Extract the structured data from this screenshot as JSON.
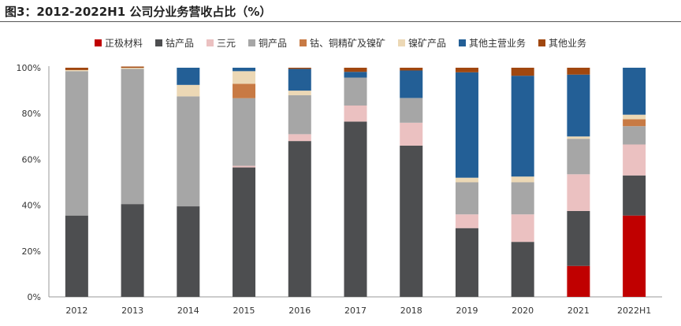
{
  "title": "图3：2012-2022H1 公司分业务营收占比（%）",
  "chart_data": {
    "type": "bar",
    "stacked": true,
    "title": "图3：2012-2022H1 公司分业务营收占比（%）",
    "categories": [
      "2012",
      "2013",
      "2014",
      "2015",
      "2016",
      "2017",
      "2018",
      "2019",
      "2020",
      "2021",
      "2022H1"
    ],
    "ylim": [
      0,
      100
    ],
    "yticks": [
      "0%",
      "20%",
      "40%",
      "60%",
      "80%",
      "100%"
    ],
    "grid": false,
    "legend": "top",
    "series": [
      {
        "name": "正极材料",
        "color": "#c00000",
        "values": [
          0,
          0,
          0,
          0,
          0,
          0,
          0,
          0,
          0,
          13.5,
          35.5
        ]
      },
      {
        "name": "钴产品",
        "color": "#4d4e50",
        "values": [
          35.5,
          40.5,
          39.5,
          56.5,
          68,
          76.5,
          66,
          30,
          24,
          24,
          17.5
        ]
      },
      {
        "name": "三元",
        "color": "#ebc1c1",
        "values": [
          0,
          0,
          0,
          0.7,
          3,
          7,
          10,
          6,
          12,
          16,
          13.5
        ]
      },
      {
        "name": "铜产品",
        "color": "#a6a6a6",
        "values": [
          63,
          59,
          48,
          29.5,
          17,
          12.2,
          10.8,
          14,
          14,
          15.5,
          8
        ]
      },
      {
        "name": "钴、铜精矿及镍矿",
        "color": "#c87a44",
        "values": [
          0,
          0,
          0,
          6.3,
          0,
          0,
          0,
          0,
          0,
          0,
          3
        ]
      },
      {
        "name": "镍矿产品",
        "color": "#ecd8b5",
        "values": [
          0.5,
          0.5,
          5,
          5.5,
          2,
          0,
          0,
          2,
          2.5,
          1,
          2
        ]
      },
      {
        "name": "其他主营业务",
        "color": "#235f96",
        "values": [
          0,
          0,
          7.5,
          1.5,
          9.5,
          2.5,
          12,
          46,
          44,
          27,
          20.5
        ]
      },
      {
        "name": "其他业务",
        "color": "#a0470f",
        "values": [
          1,
          0.5,
          0,
          0,
          0.5,
          1.8,
          1.2,
          2,
          3.5,
          3,
          0
        ]
      }
    ]
  }
}
